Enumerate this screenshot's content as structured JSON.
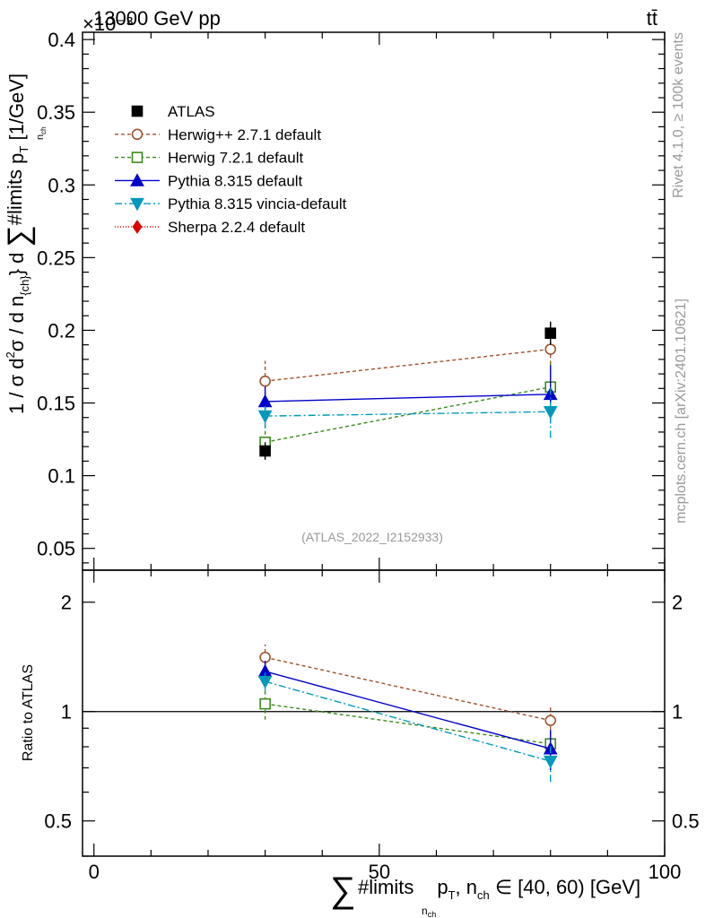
{
  "header": {
    "left_title": "13000 GeV pp",
    "right_title": "tt̄",
    "y_exponent": "×10⁻³",
    "watermark_top": "Rivet 4.1.0, ≥ 100k events",
    "watermark_bottom": "mcplots.cern.ch [arXiv:2401.10621]",
    "analysis_tag": "(ATLAS_2022_I2152933)"
  },
  "chart_data": {
    "type": "line",
    "x": [
      30,
      80
    ],
    "xlim": [
      -2,
      100
    ],
    "ylim": [
      0.035,
      0.405
    ],
    "xlabel": "∑#limits_nch pT, nch ∈ [40, 60) [GeV]",
    "xlabel_parts": {
      "sum": "∑",
      "limits": "#limits",
      "sub_nch": "n",
      "sub_ch": "ch",
      "pt": "p",
      "pt_sub": "T",
      "rest": ", n",
      "rest_sub": "ch",
      "range": " ∈ [40, 60) [GeV]"
    },
    "ylabel": "1 / σ d²σ / d n_{ch} d ∑#limits_nch pT [1/GeV]",
    "ylabel_parts": {
      "a": "1 / σ d",
      "sup2": "2",
      "b": "σ / d n",
      "sub_ch": "{ch}",
      "c": "} d ",
      "sum": "∑",
      "limits": "#limits",
      "d": "  p",
      "pt_sub": "T",
      "e": "  [1/GeV]",
      "under_nch": "n",
      "under_ch": "ch"
    },
    "x_ticks": [
      0,
      50,
      100
    ],
    "x_tick_labels": [
      "0",
      "50",
      "100"
    ],
    "y_ticks": [
      0.05,
      0.1,
      0.15,
      0.2,
      0.25,
      0.3,
      0.35,
      0.4
    ],
    "y_tick_labels": [
      "0.05",
      "0.1",
      "0.15",
      "0.2",
      "0.25",
      "0.3",
      "0.35",
      "0.4"
    ],
    "series": [
      {
        "name": "ATLAS",
        "color": "#000000",
        "marker": "square-filled",
        "dash": "none",
        "values": [
          0.117,
          0.198
        ],
        "err": [
          0.006,
          0.008
        ]
      },
      {
        "name": "Herwig++ 2.7.1 default",
        "color": "#a0522d",
        "marker": "circle-open",
        "dash": "4,3",
        "values": [
          0.165,
          0.187
        ],
        "err": [
          0.014,
          0.019
        ]
      },
      {
        "name": "Herwig 7.2.1 default",
        "color": "#3a8c1a",
        "marker": "square-open",
        "dash": "4,3",
        "values": [
          0.123,
          0.161
        ],
        "err": [
          0.012,
          0.016
        ]
      },
      {
        "name": "Pythia 8.315 default",
        "color": "#0000cc",
        "marker": "triangle-up",
        "dash": "",
        "values": [
          0.151,
          0.156
        ],
        "err": [
          0.01,
          0.02
        ]
      },
      {
        "name": "Pythia 8.315 vincia-default",
        "color": "#0099bb",
        "marker": "triangle-down",
        "dash": "8,3,2,3",
        "values": [
          0.141,
          0.144
        ],
        "err": [
          0.008,
          0.018
        ]
      },
      {
        "name": "Sherpa 2.2.4 default",
        "color": "#dd0000",
        "marker": "diamond",
        "dash": "1,2",
        "values": [
          null,
          null
        ],
        "err": [
          null,
          null
        ]
      }
    ],
    "ratio": {
      "ylabel": "Ratio to ATLAS",
      "ylim": [
        0.4,
        2.45
      ],
      "y_ticks": [
        0.5,
        1,
        2
      ],
      "y_tick_labels": [
        "0.5",
        "1",
        "2"
      ],
      "series": [
        {
          "name": "Herwig++ 2.7.1 default",
          "values": [
            1.41,
            0.945
          ],
          "err": [
            0.12,
            0.09
          ]
        },
        {
          "name": "Herwig 7.2.1 default",
          "values": [
            1.05,
            0.815
          ],
          "err": [
            0.1,
            0.08
          ]
        },
        {
          "name": "Pythia 8.315 default",
          "values": [
            1.29,
            0.79
          ],
          "err": [
            0.09,
            0.1
          ]
        },
        {
          "name": "Pythia 8.315 vincia-default",
          "values": [
            1.21,
            0.73
          ],
          "err": [
            0.07,
            0.09
          ]
        }
      ]
    }
  }
}
